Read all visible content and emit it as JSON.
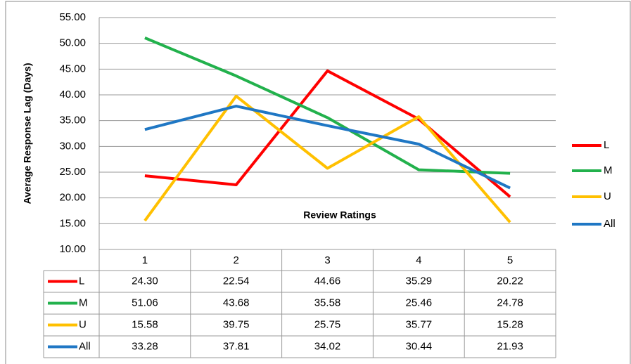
{
  "chart_data": {
    "type": "line",
    "y_label": "Average Response Lag (Days)",
    "x_label": "Review Ratings",
    "categories": [
      "1",
      "2",
      "3",
      "4",
      "5"
    ],
    "series": [
      {
        "name": "L",
        "color": "#ff0000",
        "values": [
          24.3,
          22.54,
          44.66,
          35.29,
          20.22
        ],
        "value_labels": [
          "24.30",
          "22.54",
          "44.66",
          "35.29",
          "20.22"
        ]
      },
      {
        "name": "M",
        "color": "#22b14c",
        "values": [
          51.06,
          43.68,
          35.58,
          25.46,
          24.78
        ],
        "value_labels": [
          "51.06",
          "43.68",
          "35.58",
          "25.46",
          "24.78"
        ]
      },
      {
        "name": "U",
        "color": "#ffc000",
        "values": [
          15.58,
          39.75,
          25.75,
          35.77,
          15.28
        ],
        "value_labels": [
          "15.58",
          "39.75",
          "25.75",
          "35.77",
          "15.28"
        ]
      },
      {
        "name": "All",
        "color": "#1f77c4",
        "values": [
          33.28,
          37.81,
          34.02,
          30.44,
          21.93
        ],
        "value_labels": [
          "33.28",
          "37.81",
          "34.02",
          "30.44",
          "21.93"
        ]
      }
    ],
    "ylim": [
      10,
      55
    ],
    "yticks": [
      {
        "value": 10,
        "label": "10.00"
      },
      {
        "value": 15,
        "label": "15.00"
      },
      {
        "value": 20,
        "label": "20.00"
      },
      {
        "value": 25,
        "label": "25.00"
      },
      {
        "value": 30,
        "label": "30.00"
      },
      {
        "value": 35,
        "label": "35.00"
      },
      {
        "value": 40,
        "label": "40.00"
      },
      {
        "value": 45,
        "label": "45.00"
      },
      {
        "value": 50,
        "label": "50.00"
      },
      {
        "value": 55,
        "label": "55.00"
      }
    ],
    "grid": true,
    "legend": "right"
  }
}
